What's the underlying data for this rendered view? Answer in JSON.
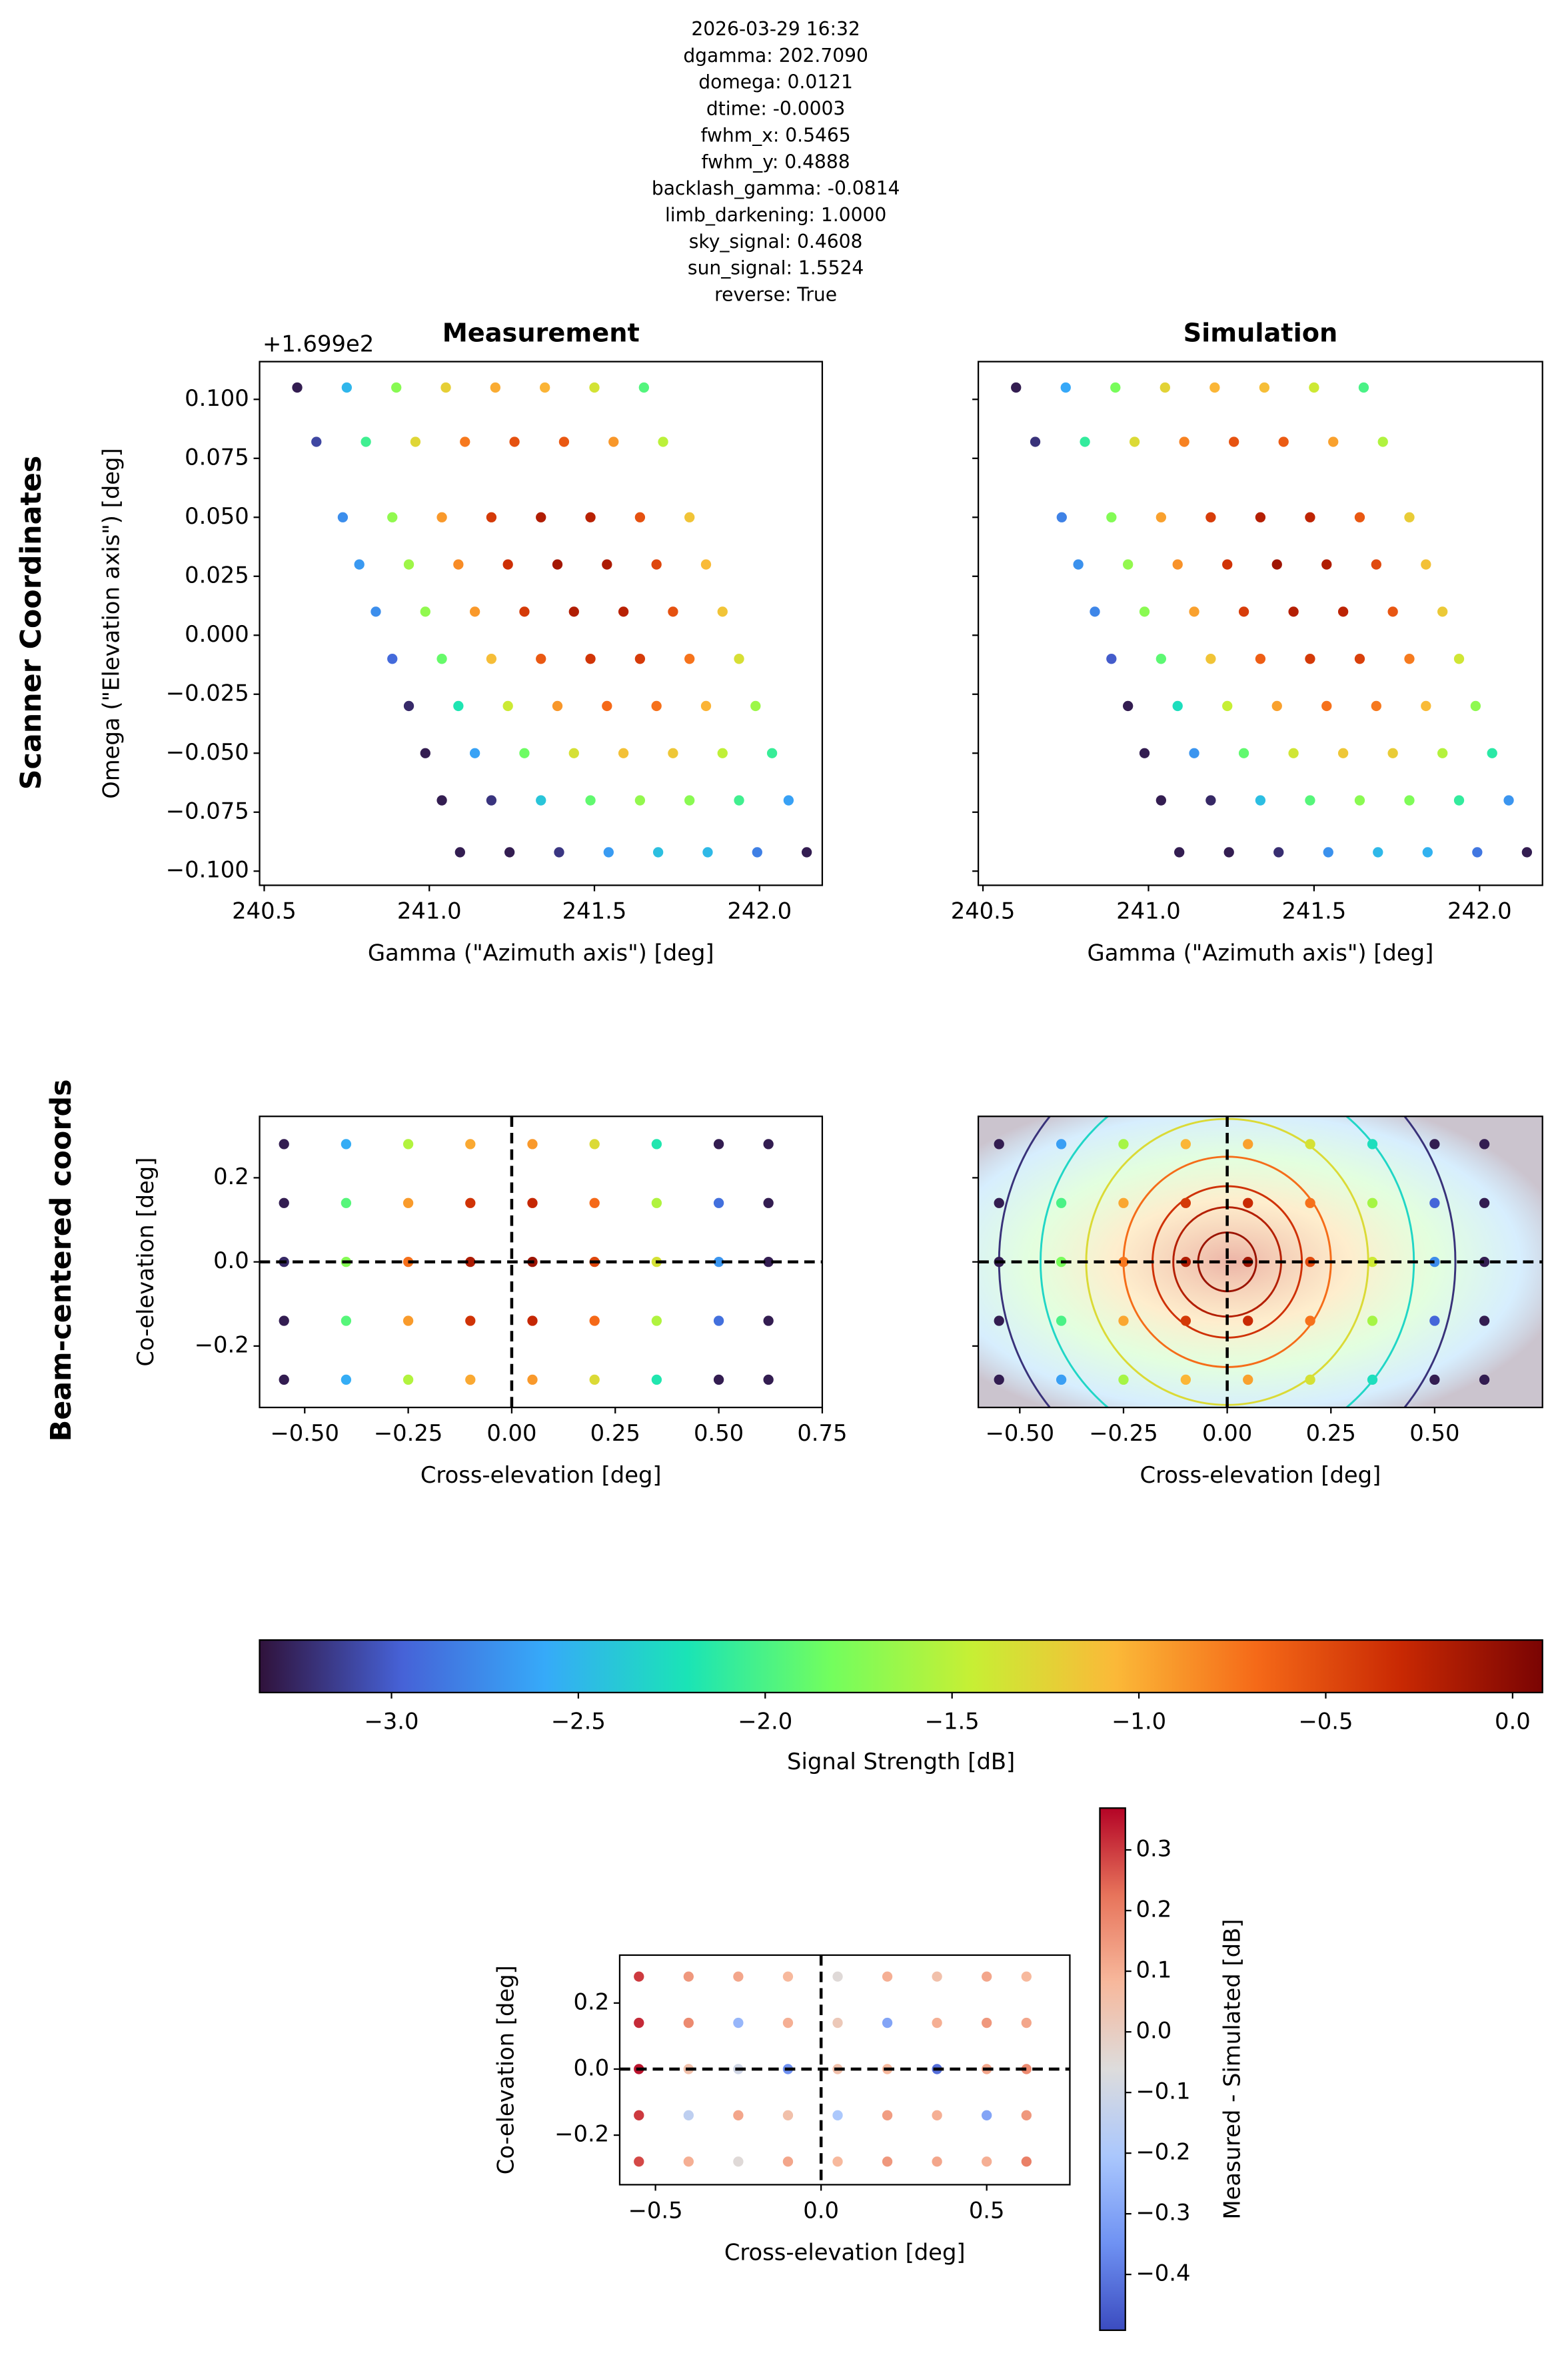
{
  "figure": {
    "title_lines": [
      "2026-03-29 16:32",
      "dgamma: 202.7090",
      "domega: 0.0121",
      "dtime: -0.0003",
      "fwhm_x: 0.5465",
      "fwhm_y: 0.4888",
      "backlash_gamma: -0.0814",
      "limb_darkening: 1.0000",
      "sky_signal: 0.4608",
      "sun_signal: 1.5524",
      "reverse: True"
    ],
    "row_labels": [
      "Scanner Coordinates",
      "Beam-centered coords"
    ]
  },
  "chart_data": [
    {
      "type": "scatter",
      "title": "Measurement",
      "offset_text": "+1.699e2",
      "x_label": "Gamma (\"Azimuth axis\") [deg]",
      "y_label": "Omega (\"Elevation axis\") [deg]",
      "xlim": [
        240.486,
        242.19
      ],
      "ylim": [
        -0.106,
        0.116
      ],
      "xticks": [
        240.5,
        {
          "value": 241,
          "label": "241.0"
        },
        241.5,
        {
          "value": 242,
          "label": "242.0"
        }
      ],
      "yticks": [
        {
          "value": 0.1,
          "label": "0.100"
        },
        {
          "value": 0.075,
          "label": "0.075"
        },
        {
          "value": 0.05,
          "label": "0.050"
        },
        {
          "value": 0.025,
          "label": "0.025"
        },
        {
          "value": 0,
          "label": "0.000"
        },
        {
          "value": -0.025,
          "label": "−0.025"
        },
        {
          "value": -0.05,
          "label": "−0.050"
        },
        {
          "value": -0.075,
          "label": "−0.075"
        },
        {
          "value": -0.1,
          "label": "−0.100"
        }
      ],
      "x": [
        240.6,
        240.75,
        240.9,
        241.05,
        241.2,
        241.35,
        241.5,
        241.65,
        240.658,
        240.808,
        240.958,
        241.108,
        241.258,
        241.408,
        241.558,
        241.708,
        240.738,
        240.888,
        241.038,
        241.188,
        241.338,
        241.488,
        241.638,
        241.788,
        240.788,
        240.938,
        241.088,
        241.238,
        241.388,
        241.538,
        241.688,
        241.838,
        240.838,
        240.988,
        241.138,
        241.288,
        241.438,
        241.588,
        241.738,
        241.888,
        240.888,
        241.038,
        241.188,
        241.338,
        241.488,
        241.638,
        241.788,
        241.938,
        240.938,
        241.088,
        241.238,
        241.388,
        241.538,
        241.688,
        241.838,
        241.988,
        240.988,
        241.138,
        241.288,
        241.438,
        241.588,
        241.738,
        241.888,
        242.038,
        241.038,
        241.188,
        241.338,
        241.488,
        241.638,
        241.788,
        241.938,
        242.088,
        241.093,
        241.243,
        241.393,
        241.543,
        241.693,
        241.843,
        241.993,
        242.143
      ],
      "y": [
        0.105,
        0.105,
        0.105,
        0.105,
        0.105,
        0.105,
        0.105,
        0.105,
        0.082,
        0.082,
        0.082,
        0.082,
        0.082,
        0.082,
        0.082,
        0.082,
        0.05,
        0.05,
        0.05,
        0.05,
        0.05,
        0.05,
        0.05,
        0.05,
        0.03,
        0.03,
        0.03,
        0.03,
        0.03,
        0.03,
        0.03,
        0.03,
        0.01,
        0.01,
        0.01,
        0.01,
        0.01,
        0.01,
        0.01,
        0.01,
        -0.01,
        -0.01,
        -0.01,
        -0.01,
        -0.01,
        -0.01,
        -0.01,
        -0.01,
        -0.03,
        -0.03,
        -0.03,
        -0.03,
        -0.03,
        -0.03,
        -0.03,
        -0.03,
        -0.05,
        -0.05,
        -0.05,
        -0.05,
        -0.05,
        -0.05,
        -0.05,
        -0.05,
        -0.07,
        -0.07,
        -0.07,
        -0.07,
        -0.07,
        -0.07,
        -0.07,
        -0.07,
        -0.092,
        -0.092,
        -0.092,
        -0.092,
        -0.092,
        -0.092,
        -0.092,
        -0.092
      ],
      "c": [
        -3.3,
        -2.51,
        -1.73,
        -1.22,
        -1.0,
        -1.04,
        -1.36,
        -1.96,
        -3.1,
        -2.05,
        -1.27,
        -0.76,
        -0.54,
        -0.58,
        -0.9,
        -1.5,
        -2.74,
        -1.69,
        -0.91,
        -0.4,
        -0.18,
        -0.22,
        -0.54,
        -1.14,
        -2.68,
        -1.63,
        -0.85,
        -0.34,
        -0.12,
        -0.16,
        -0.48,
        -1.08,
        -2.74,
        -1.69,
        -0.91,
        -0.4,
        -0.18,
        -0.22,
        -0.54,
        -1.14,
        -2.93,
        -1.88,
        -1.1,
        -0.59,
        -0.37,
        -0.41,
        -0.73,
        -1.33,
        -3.24,
        -2.19,
        -1.41,
        -0.9,
        -0.68,
        -0.72,
        -1.04,
        -1.64,
        -3.3,
        -2.63,
        -1.85,
        -1.34,
        -1.12,
        -1.16,
        -1.48,
        -2.08,
        -3.3,
        -3.19,
        -2.41,
        -1.9,
        -1.68,
        -1.72,
        -2.04,
        -2.64,
        -3.3,
        -3.3,
        -3.18,
        -2.67,
        -2.45,
        -2.49,
        -2.81,
        -3.3
      ]
    },
    {
      "type": "scatter",
      "title": "Simulation",
      "x_label": "Gamma (\"Azimuth axis\") [deg]",
      "xlim": [
        240.486,
        242.19
      ],
      "ylim": [
        -0.106,
        0.116
      ],
      "xticks": [
        240.5,
        {
          "value": 241,
          "label": "241.0"
        },
        241.5,
        {
          "value": 242,
          "label": "242.0"
        }
      ],
      "yticks": [
        0.1,
        0.075,
        0.05,
        0.025,
        0,
        -0.025,
        -0.05,
        -0.075,
        -0.1
      ],
      "x": [
        240.6,
        240.75,
        240.9,
        241.05,
        241.2,
        241.35,
        241.5,
        241.65,
        240.658,
        240.808,
        240.958,
        241.108,
        241.258,
        241.408,
        241.558,
        241.708,
        240.738,
        240.888,
        241.038,
        241.188,
        241.338,
        241.488,
        241.638,
        241.788,
        240.788,
        240.938,
        241.088,
        241.238,
        241.388,
        241.538,
        241.688,
        241.838,
        240.838,
        240.988,
        241.138,
        241.288,
        241.438,
        241.588,
        241.738,
        241.888,
        240.888,
        241.038,
        241.188,
        241.338,
        241.488,
        241.638,
        241.788,
        241.938,
        240.938,
        241.088,
        241.238,
        241.388,
        241.538,
        241.688,
        241.838,
        241.988,
        240.988,
        241.138,
        241.288,
        241.438,
        241.588,
        241.738,
        241.888,
        242.038,
        241.038,
        241.188,
        241.338,
        241.488,
        241.638,
        241.788,
        241.938,
        242.088,
        241.093,
        241.243,
        241.393,
        241.543,
        241.693,
        241.843,
        241.993,
        242.143
      ],
      "y": [
        0.105,
        0.105,
        0.105,
        0.105,
        0.105,
        0.105,
        0.105,
        0.105,
        0.082,
        0.082,
        0.082,
        0.082,
        0.082,
        0.082,
        0.082,
        0.082,
        0.05,
        0.05,
        0.05,
        0.05,
        0.05,
        0.05,
        0.05,
        0.05,
        0.03,
        0.03,
        0.03,
        0.03,
        0.03,
        0.03,
        0.03,
        0.03,
        0.01,
        0.01,
        0.01,
        0.01,
        0.01,
        0.01,
        0.01,
        0.01,
        -0.01,
        -0.01,
        -0.01,
        -0.01,
        -0.01,
        -0.01,
        -0.01,
        -0.01,
        -0.03,
        -0.03,
        -0.03,
        -0.03,
        -0.03,
        -0.03,
        -0.03,
        -0.03,
        -0.05,
        -0.05,
        -0.05,
        -0.05,
        -0.05,
        -0.05,
        -0.05,
        -0.05,
        -0.07,
        -0.07,
        -0.07,
        -0.07,
        -0.07,
        -0.07,
        -0.07,
        -0.07,
        -0.092,
        -0.092,
        -0.092,
        -0.092,
        -0.092,
        -0.092,
        -0.092,
        -0.092
      ],
      "c": [
        -3.3,
        -2.6,
        -1.8,
        -1.25,
        -1.05,
        -1.1,
        -1.4,
        -2.0,
        -3.2,
        -2.1,
        -1.3,
        -0.8,
        -0.55,
        -0.6,
        -0.95,
        -1.55,
        -2.8,
        -1.75,
        -0.95,
        -0.42,
        -0.2,
        -0.25,
        -0.58,
        -1.2,
        -2.72,
        -1.68,
        -0.88,
        -0.36,
        -0.1,
        -0.18,
        -0.5,
        -1.12,
        -2.78,
        -1.72,
        -0.95,
        -0.42,
        -0.2,
        -0.24,
        -0.57,
        -1.18,
        -3.0,
        -1.92,
        -1.14,
        -0.62,
        -0.4,
        -0.44,
        -0.77,
        -1.38,
        -3.3,
        -2.25,
        -1.45,
        -0.95,
        -0.72,
        -0.76,
        -1.08,
        -1.7,
        -3.3,
        -2.7,
        -1.9,
        -1.38,
        -1.16,
        -1.2,
        -1.53,
        -2.14,
        -3.3,
        -3.25,
        -2.46,
        -1.95,
        -1.72,
        -1.77,
        -2.1,
        -2.7,
        -3.3,
        -3.3,
        -3.22,
        -2.72,
        -2.5,
        -2.54,
        -2.86,
        -3.3
      ]
    },
    {
      "type": "scatter",
      "crosshair": true,
      "x_label": "Cross-elevation [deg]",
      "y_label": "Co-elevation [deg]",
      "xlim": [
        -0.609,
        0.75
      ],
      "ylim": [
        -0.346,
        0.346
      ],
      "xticks": [
        {
          "value": -0.5,
          "label": "−0.50"
        },
        {
          "value": -0.25,
          "label": "−0.25"
        },
        {
          "value": 0,
          "label": "0.00"
        },
        0.25,
        {
          "value": 0.5,
          "label": "0.50"
        },
        0.75
      ],
      "yticks": [
        0.2,
        {
          "value": 0,
          "label": "0.0"
        },
        {
          "value": -0.2,
          "label": "−0.2"
        }
      ],
      "x": [
        -0.55,
        -0.4,
        -0.25,
        -0.1,
        0.05,
        0.2,
        0.35,
        0.5,
        0.62,
        -0.55,
        -0.4,
        -0.25,
        -0.1,
        0.05,
        0.2,
        0.35,
        0.5,
        0.62,
        -0.55,
        -0.4,
        -0.25,
        -0.1,
        0.05,
        0.2,
        0.35,
        0.5,
        0.62,
        -0.55,
        -0.4,
        -0.25,
        -0.1,
        0.05,
        0.2,
        0.35,
        0.5,
        0.62,
        -0.55,
        -0.4,
        -0.25,
        -0.1,
        0.05,
        0.2,
        0.35,
        0.5,
        0.62
      ],
      "y": [
        0.28,
        0.28,
        0.28,
        0.28,
        0.28,
        0.28,
        0.28,
        0.28,
        0.28,
        0.14,
        0.14,
        0.14,
        0.14,
        0.14,
        0.14,
        0.14,
        0.14,
        0.14,
        0,
        0,
        0,
        0,
        0,
        0,
        0,
        0,
        0,
        -0.14,
        -0.14,
        -0.14,
        -0.14,
        -0.14,
        -0.14,
        -0.14,
        -0.14,
        -0.14,
        -0.28,
        -0.28,
        -0.28,
        -0.28,
        -0.28,
        -0.28,
        -0.28,
        -0.28,
        -0.28
      ],
      "c": [
        -3.3,
        -2.57,
        -1.54,
        -0.99,
        -0.91,
        -1.3,
        -2.18,
        -3.3,
        -3.3,
        -3.3,
        -1.95,
        -0.92,
        -0.36,
        -0.28,
        -0.68,
        -1.55,
        -2.9,
        -3.3,
        -3.25,
        -1.74,
        -0.71,
        -0.16,
        -0.08,
        -0.47,
        -1.35,
        -2.7,
        -3.3,
        -3.3,
        -1.95,
        -0.92,
        -0.36,
        -0.28,
        -0.68,
        -1.55,
        -2.9,
        -3.3,
        -3.3,
        -2.57,
        -1.54,
        -0.99,
        -0.91,
        -1.3,
        -2.18,
        -3.3,
        -3.3
      ]
    },
    {
      "type": "scatter",
      "crosshair": true,
      "x_label": "Cross-elevation [deg]",
      "xlim": [
        -0.6,
        0.76
      ],
      "ylim": [
        -0.346,
        0.346
      ],
      "xticks": [
        {
          "value": -0.5,
          "label": "−0.50"
        },
        {
          "value": -0.25,
          "label": "−0.25"
        },
        {
          "value": 0,
          "label": "0.00"
        },
        0.25,
        {
          "value": 0.5,
          "label": "0.50"
        }
      ],
      "yticks": [
        0.2,
        0,
        -0.2
      ],
      "contours": {
        "levels": [
          -3.2,
          -2.3,
          -1.3,
          -0.7,
          -0.35,
          -0.2,
          -0.08
        ],
        "radii": [
          0.55,
          0.45,
          0.34,
          0.25,
          0.18,
          0.13,
          0.07
        ]
      },
      "x": [
        -0.55,
        -0.4,
        -0.25,
        -0.1,
        0.05,
        0.2,
        0.35,
        0.5,
        0.62,
        -0.55,
        -0.4,
        -0.25,
        -0.1,
        0.05,
        0.2,
        0.35,
        0.5,
        0.62,
        -0.55,
        -0.4,
        -0.25,
        -0.1,
        0.05,
        0.2,
        0.35,
        0.5,
        0.62,
        -0.55,
        -0.4,
        -0.25,
        -0.1,
        0.05,
        0.2,
        0.35,
        0.5,
        0.62,
        -0.55,
        -0.4,
        -0.25,
        -0.1,
        0.05,
        0.2,
        0.35,
        0.5,
        0.62
      ],
      "y": [
        0.28,
        0.28,
        0.28,
        0.28,
        0.28,
        0.28,
        0.28,
        0.28,
        0.28,
        0.14,
        0.14,
        0.14,
        0.14,
        0.14,
        0.14,
        0.14,
        0.14,
        0.14,
        0,
        0,
        0,
        0,
        0,
        0,
        0,
        0,
        0,
        -0.14,
        -0.14,
        -0.14,
        -0.14,
        -0.14,
        -0.14,
        -0.14,
        -0.14,
        -0.14,
        -0.28,
        -0.28,
        -0.28,
        -0.28,
        -0.28,
        -0.28,
        -0.28,
        -0.28,
        -0.28
      ],
      "c": [
        -3.3,
        -2.65,
        -1.6,
        -1.05,
        -0.95,
        -1.35,
        -2.25,
        -3.3,
        -3.3,
        -3.3,
        -2.0,
        -0.98,
        -0.4,
        -0.3,
        -0.72,
        -1.6,
        -2.95,
        -3.3,
        -3.3,
        -1.8,
        -0.75,
        -0.18,
        -0.09,
        -0.5,
        -1.4,
        -2.75,
        -3.3,
        -3.3,
        -2.0,
        -0.98,
        -0.4,
        -0.3,
        -0.72,
        -1.6,
        -2.95,
        -3.3,
        -3.3,
        -2.65,
        -1.6,
        -1.05,
        -0.95,
        -1.35,
        -2.25,
        -3.3,
        -3.3
      ]
    },
    {
      "type": "colorbar",
      "orientation": "horizontal",
      "label": "Signal Strength [dB]",
      "lim": [
        -3.353,
        0.08
      ],
      "ticks": [
        {
          "value": -3,
          "label": "−3.0"
        },
        {
          "value": -2.5,
          "label": "−2.5"
        },
        {
          "value": -2,
          "label": "−2.0"
        },
        {
          "value": -1.5,
          "label": "−1.5"
        },
        {
          "value": -1,
          "label": "−1.0"
        },
        {
          "value": -0.5,
          "label": "−0.5"
        },
        {
          "value": 0,
          "label": "0.0"
        }
      ],
      "colormap": [
        "#30123b",
        "#4662d7",
        "#36aaf9",
        "#1ae4b6",
        "#72fe5e",
        "#c7ef34",
        "#fbb938",
        "#f56918",
        "#c92903",
        "#7a0403"
      ]
    },
    {
      "type": "scatter",
      "crosshair": true,
      "x_label": "Cross-elevation [deg]",
      "y_label": "Co-elevation [deg]",
      "xlim": [
        -0.608,
        0.751
      ],
      "ylim": [
        -0.35,
        0.345
      ],
      "xticks": [
        {
          "value": -0.5,
          "label": "−0.5"
        },
        {
          "value": 0,
          "label": "0.0"
        },
        0.5
      ],
      "yticks": [
        0.2,
        {
          "value": 0,
          "label": "0.0"
        },
        {
          "value": -0.2,
          "label": "−0.2"
        }
      ],
      "x": [
        -0.55,
        -0.4,
        -0.25,
        -0.1,
        0.05,
        0.2,
        0.35,
        0.5,
        0.62,
        -0.55,
        -0.4,
        -0.25,
        -0.1,
        0.05,
        0.2,
        0.35,
        0.5,
        0.62,
        -0.55,
        -0.4,
        -0.25,
        -0.1,
        0.05,
        0.2,
        0.35,
        0.5,
        0.62,
        -0.55,
        -0.4,
        -0.25,
        -0.1,
        0.05,
        0.2,
        0.35,
        0.5,
        0.62,
        -0.55,
        -0.4,
        -0.25,
        -0.1,
        0.05,
        0.2,
        0.35,
        0.5,
        0.62
      ],
      "y": [
        0.28,
        0.28,
        0.28,
        0.28,
        0.28,
        0.28,
        0.28,
        0.28,
        0.28,
        0.14,
        0.14,
        0.14,
        0.14,
        0.14,
        0.14,
        0.14,
        0.14,
        0.14,
        0,
        0,
        0,
        0,
        0,
        0,
        0,
        0,
        0,
        -0.14,
        -0.14,
        -0.14,
        -0.14,
        -0.14,
        -0.14,
        -0.14,
        -0.14,
        -0.14,
        -0.28,
        -0.28,
        -0.28,
        -0.28,
        -0.28,
        -0.28,
        -0.28,
        -0.28,
        -0.28
      ],
      "c": [
        0.3,
        0.15,
        0.12,
        0.08,
        -0.05,
        0.1,
        0.05,
        0.12,
        0.08,
        0.32,
        0.18,
        -0.25,
        0.1,
        0.02,
        -0.3,
        0.1,
        0.15,
        0.12,
        0.35,
        0.05,
        -0.1,
        -0.35,
        0.05,
        0.08,
        -0.42,
        0.12,
        0.18,
        0.3,
        -0.15,
        0.12,
        0.05,
        -0.2,
        0.14,
        0.1,
        -0.3,
        0.15,
        0.28,
        0.1,
        -0.05,
        0.12,
        0.08,
        0.15,
        0.12,
        0.1,
        0.2
      ]
    },
    {
      "type": "colorbar",
      "orientation": "vertical",
      "label": "Measured - Simulated [dB]",
      "lim": [
        -0.492,
        0.369
      ],
      "ticks": [
        0.3,
        0.2,
        0.1,
        {
          "value": 0,
          "label": "0.0"
        },
        {
          "value": -0.1,
          "label": "−0.1"
        },
        {
          "value": -0.2,
          "label": "−0.2"
        },
        {
          "value": -0.3,
          "label": "−0.3"
        },
        {
          "value": -0.4,
          "label": "−0.4"
        }
      ],
      "colormap": [
        "#3b4cc0",
        "#6f92f3",
        "#aac7fd",
        "#dddcdc",
        "#f7b89c",
        "#e7745b",
        "#b40426"
      ]
    }
  ]
}
